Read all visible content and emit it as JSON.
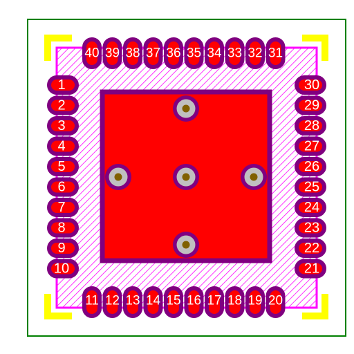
{
  "colors": {
    "background": "#ffffff",
    "outline": "#008000",
    "silk": "#ff00ff",
    "pad_fill": "#ff0000",
    "pad_ring": "#800080",
    "marker": "#ffff00",
    "via_fill": "#c0c0c0",
    "via_hole": "#806000",
    "label": "#ffffff"
  },
  "pins": {
    "left": [
      "1",
      "2",
      "3",
      "4",
      "5",
      "6",
      "7",
      "8",
      "9",
      "10"
    ],
    "bottom": [
      "11",
      "12",
      "13",
      "14",
      "15",
      "16",
      "17",
      "18",
      "19",
      "20"
    ],
    "right": [
      "21",
      "22",
      "23",
      "24",
      "25",
      "26",
      "27",
      "28",
      "29",
      "30"
    ],
    "top": [
      "31",
      "32",
      "33",
      "34",
      "35",
      "36",
      "37",
      "38",
      "39",
      "40"
    ]
  },
  "thermal_vias": 5
}
